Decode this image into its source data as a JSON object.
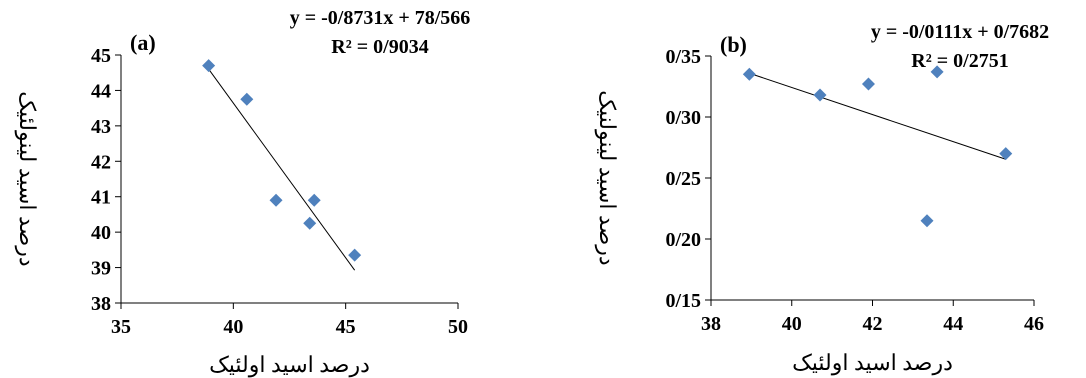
{
  "chart_data": [
    {
      "type": "scatter",
      "panel_label": "(a)",
      "xlabel": "درصد اسید اولئیک",
      "ylabel": "درصد اسید لینولئیک",
      "xlim": [
        35,
        50
      ],
      "ylim": [
        38,
        45
      ],
      "xticks": [
        35,
        40,
        45,
        50
      ],
      "yticks": [
        38,
        39,
        40,
        41,
        42,
        43,
        44,
        45
      ],
      "xtick_labels": [
        "35",
        "40",
        "45",
        "50"
      ],
      "ytick_labels": [
        "38",
        "39",
        "40",
        "41",
        "42",
        "43",
        "44",
        "45"
      ],
      "grid": false,
      "marker_color": "#4f81bd",
      "points": [
        {
          "x": 38.9,
          "y": 44.7
        },
        {
          "x": 40.6,
          "y": 43.75
        },
        {
          "x": 41.9,
          "y": 40.9
        },
        {
          "x": 43.4,
          "y": 40.25
        },
        {
          "x": 43.6,
          "y": 40.9
        },
        {
          "x": 45.4,
          "y": 39.35
        }
      ],
      "trendline": {
        "slope": -0.8731,
        "intercept": 78.566,
        "x_range": [
          38.9,
          45.4
        ]
      },
      "equation": "y = -0/8731x + 78/566",
      "r_squared": "R² = 0/9034"
    },
    {
      "type": "scatter",
      "panel_label": "(b)",
      "xlabel": "درصد اسید اولئیک",
      "ylabel": "درصد اسید لینولنیک",
      "xlim": [
        38,
        46
      ],
      "ylim": [
        0.15,
        0.35
      ],
      "xticks": [
        38,
        40,
        42,
        44,
        46
      ],
      "yticks": [
        0.15,
        0.2,
        0.25,
        0.3,
        0.35
      ],
      "xtick_labels": [
        "38",
        "40",
        "42",
        "44",
        "46"
      ],
      "ytick_labels": [
        "0/15",
        "0/20",
        "0/25",
        "0/30",
        "0/35"
      ],
      "grid": false,
      "marker_color": "#4f81bd",
      "points": [
        {
          "x": 38.95,
          "y": 0.335
        },
        {
          "x": 40.7,
          "y": 0.318
        },
        {
          "x": 41.9,
          "y": 0.327
        },
        {
          "x": 43.35,
          "y": 0.215
        },
        {
          "x": 43.6,
          "y": 0.337
        },
        {
          "x": 45.3,
          "y": 0.27
        }
      ],
      "trendline": {
        "slope": -0.0111,
        "intercept": 0.7682,
        "x_range": [
          38.95,
          45.3
        ]
      },
      "equation": "y = -0/0111x + 0/7682",
      "r_squared": "R² = 0/2751"
    }
  ]
}
